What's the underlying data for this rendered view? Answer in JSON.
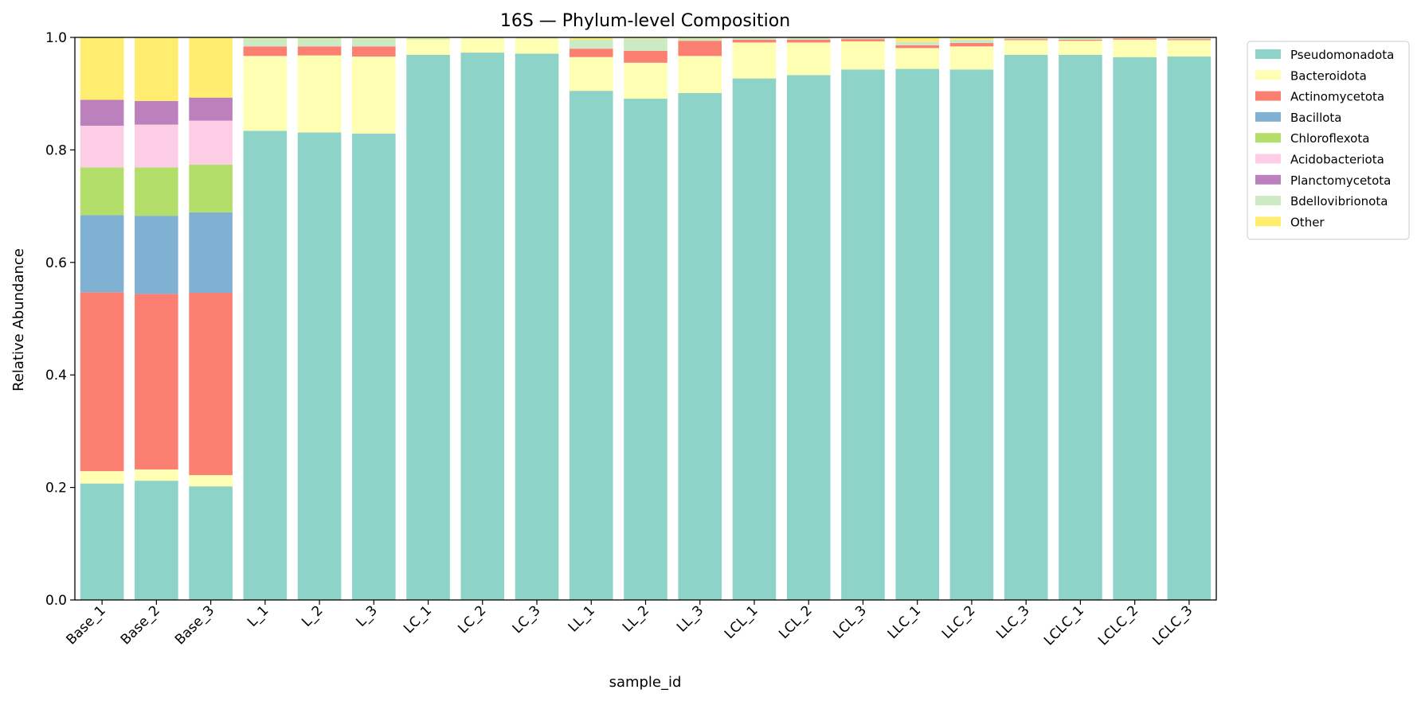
{
  "chart_data": {
    "type": "bar",
    "stacked": true,
    "title": "16S — Phylum-level Composition",
    "xlabel": "sample_id",
    "ylabel": "Relative Abundance",
    "ylim": [
      0,
      1
    ],
    "yticks": [
      "0.0",
      "0.2",
      "0.4",
      "0.6",
      "0.8",
      "1.0"
    ],
    "legend_position": "outside-top-right",
    "grid": false,
    "categories": [
      "Base_1",
      "Base_2",
      "Base_3",
      "L_1",
      "L_2",
      "L_3",
      "LC_1",
      "LC_2",
      "LC_3",
      "LL_1",
      "LL_2",
      "LL_3",
      "LCL_1",
      "LCL_2",
      "LCL_3",
      "LLC_1",
      "LLC_2",
      "LLC_3",
      "LCLC_1",
      "LCLC_2",
      "LCLC_3"
    ],
    "series": [
      {
        "name": "Pseudomonadota",
        "color": "#8dd3c7",
        "values": [
          0.207,
          0.212,
          0.202,
          0.834,
          0.831,
          0.829,
          0.969,
          0.973,
          0.971,
          0.905,
          0.891,
          0.901,
          0.927,
          0.933,
          0.943,
          0.944,
          0.943,
          0.969,
          0.969,
          0.965,
          0.966
        ]
      },
      {
        "name": "Bacteroidota",
        "color": "#ffffb3",
        "values": [
          0.022,
          0.02,
          0.02,
          0.133,
          0.137,
          0.137,
          0.027,
          0.025,
          0.027,
          0.06,
          0.064,
          0.066,
          0.064,
          0.058,
          0.05,
          0.037,
          0.041,
          0.026,
          0.025,
          0.031,
          0.029
        ]
      },
      {
        "name": "Actinomycetota",
        "color": "#fb8072",
        "values": [
          0.318,
          0.312,
          0.324,
          0.017,
          0.016,
          0.018,
          0.0,
          0.0,
          0.0,
          0.015,
          0.021,
          0.027,
          0.005,
          0.005,
          0.004,
          0.005,
          0.006,
          0.002,
          0.002,
          0.002,
          0.002
        ]
      },
      {
        "name": "Bacillota",
        "color": "#80b1d3",
        "values": [
          0.137,
          0.139,
          0.143,
          0.0,
          0.0,
          0.0,
          0.0,
          0.0,
          0.0,
          0.0,
          0.0,
          0.0,
          0.0,
          0.0,
          0.0,
          0.0,
          0.0,
          0.0,
          0.0,
          0.0,
          0.0
        ]
      },
      {
        "name": "Chloroflexota",
        "color": "#b3de69",
        "values": [
          0.085,
          0.086,
          0.085,
          0.0,
          0.0,
          0.0,
          0.0,
          0.0,
          0.0,
          0.0,
          0.0,
          0.0,
          0.0,
          0.0,
          0.0,
          0.0,
          0.0,
          0.0,
          0.0,
          0.0,
          0.0
        ]
      },
      {
        "name": "Acidobacteriota",
        "color": "#fccde5",
        "values": [
          0.074,
          0.076,
          0.078,
          0.0,
          0.0,
          0.0,
          0.0,
          0.0,
          0.0,
          0.0,
          0.0,
          0.0,
          0.0,
          0.0,
          0.0,
          0.0,
          0.0,
          0.0,
          0.0,
          0.0,
          0.0
        ]
      },
      {
        "name": "Planctomycetota",
        "color": "#bc80bd",
        "values": [
          0.046,
          0.042,
          0.041,
          0.0,
          0.0,
          0.0,
          0.0,
          0.0,
          0.0,
          0.0,
          0.0,
          0.0,
          0.0,
          0.0,
          0.0,
          0.0,
          0.0,
          0.0,
          0.0,
          0.0,
          0.0
        ]
      },
      {
        "name": "Bdellovibrionota",
        "color": "#ccebc5",
        "values": [
          0.0,
          0.0,
          0.0,
          0.014,
          0.014,
          0.014,
          0.002,
          0.001,
          0.001,
          0.016,
          0.022,
          0.004,
          0.003,
          0.003,
          0.003,
          0.006,
          0.006,
          0.002,
          0.003,
          0.001,
          0.002
        ]
      },
      {
        "name": "Other",
        "color": "#ffed6f",
        "values": [
          0.111,
          0.113,
          0.107,
          0.002,
          0.002,
          0.002,
          0.002,
          0.001,
          0.001,
          0.004,
          0.002,
          0.002,
          0.001,
          0.001,
          0.0,
          0.008,
          0.004,
          0.001,
          0.001,
          0.001,
          0.001
        ]
      }
    ]
  }
}
